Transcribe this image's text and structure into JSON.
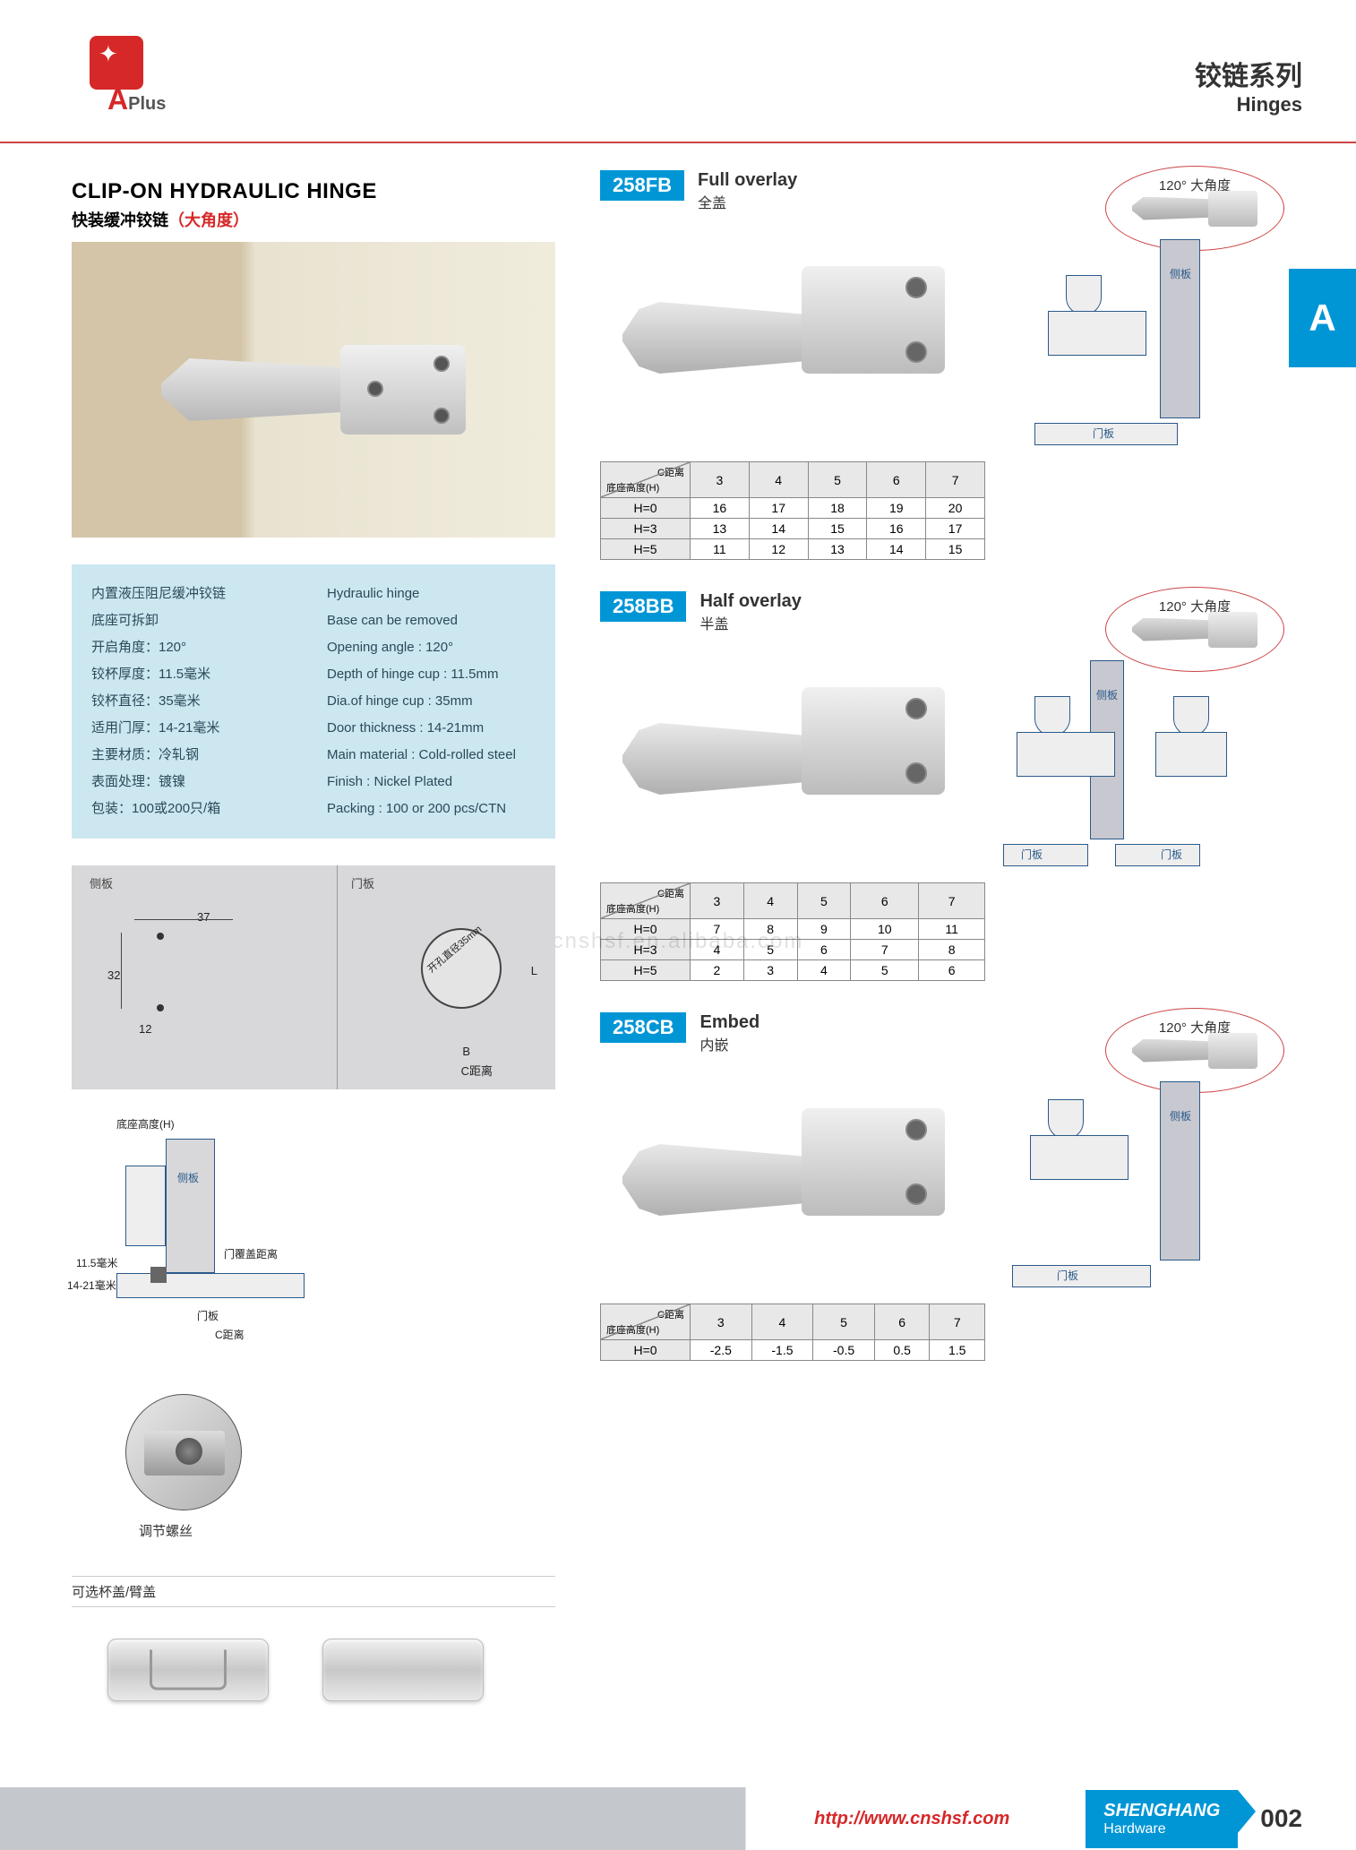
{
  "header": {
    "series_cn": "铰链系列",
    "series_en": "Hinges"
  },
  "logo": {
    "brand": "A",
    "sub": "Plus"
  },
  "product": {
    "title_en": "CLIP-ON HYDRAULIC HINGE",
    "title_cn_prefix": "快装缓冲铰链",
    "title_cn_hl": "（大角度）"
  },
  "specs_cn": [
    "内置液压阻尼缓冲铰链",
    "底座可拆卸",
    "开启角度：120°",
    "铰杯厚度：11.5毫米",
    "铰杯直径：35毫米",
    "适用门厚：14-21毫米",
    "主要材质：冷轧钢",
    "表面处理：镀镍",
    "包装：100或200只/箱"
  ],
  "specs_en": [
    "Hydraulic hinge",
    "Base can be removed",
    "Opening angle : 120°",
    "Depth of hinge cup : 11.5mm",
    "Dia.of hinge cup : 35mm",
    "Door thickness : 14-21mm",
    "Main material : Cold-rolled steel",
    "Finish : Nickel Plated",
    "Packing : 100 or 200 pcs/CTN"
  ],
  "tech": {
    "side_label": "侧板",
    "door_label": "门板",
    "dim_37": "37",
    "dim_32": "32",
    "dim_12": "12",
    "dim_L": "L",
    "dim_B": "B",
    "dim_C": "C距离",
    "hole": "开孔直径35mm",
    "base_h": "底座高度(H)",
    "cup_depth": "11.5毫米",
    "door_thick": "14-21毫米",
    "overlap": "门覆盖距离"
  },
  "detail": {
    "label": "调节螺丝"
  },
  "covers": {
    "label": "可选杯盖/臂盖"
  },
  "variants": [
    {
      "code": "258FB",
      "en": "Full overlay",
      "cn": "全盖",
      "angle": "120° 大角度",
      "table": {
        "cols": [
          "3",
          "4",
          "5",
          "6",
          "7"
        ],
        "col_hdr": "C距离",
        "row_hdr": "底座高度(H)",
        "rows": [
          {
            "h": "H=0",
            "v": [
              "16",
              "17",
              "18",
              "19",
              "20"
            ]
          },
          {
            "h": "H=3",
            "v": [
              "13",
              "14",
              "15",
              "16",
              "17"
            ]
          },
          {
            "h": "H=5",
            "v": [
              "11",
              "12",
              "13",
              "14",
              "15"
            ]
          }
        ]
      },
      "sect": {
        "side": "侧板",
        "door": "门板",
        "type": "full"
      }
    },
    {
      "code": "258BB",
      "en": "Half overlay",
      "cn": "半盖",
      "angle": "120° 大角度",
      "table": {
        "cols": [
          "3",
          "4",
          "5",
          "6",
          "7"
        ],
        "col_hdr": "C距离",
        "row_hdr": "底座高度(H)",
        "rows": [
          {
            "h": "H=0",
            "v": [
              "7",
              "8",
              "9",
              "10",
              "11"
            ]
          },
          {
            "h": "H=3",
            "v": [
              "4",
              "5",
              "6",
              "7",
              "8"
            ]
          },
          {
            "h": "H=5",
            "v": [
              "2",
              "3",
              "4",
              "5",
              "6"
            ]
          }
        ]
      },
      "sect": {
        "side": "侧板",
        "door": "门板",
        "type": "half"
      }
    },
    {
      "code": "258CB",
      "en": "Embed",
      "cn": "内嵌",
      "angle": "120° 大角度",
      "table": {
        "cols": [
          "3",
          "4",
          "5",
          "6",
          "7"
        ],
        "col_hdr": "C距离",
        "row_hdr": "底座高度(H)",
        "rows": [
          {
            "h": "H=0",
            "v": [
              "-2.5",
              "-1.5",
              "-0.5",
              "0.5",
              "1.5"
            ]
          }
        ]
      },
      "sect": {
        "side": "侧板",
        "door": "门板",
        "type": "embed"
      }
    }
  ],
  "side_tab": "A",
  "watermark": "cnshsf.en.alibaba.com",
  "footer": {
    "url": "http://www.cnshsf.com",
    "brand_big": "SHENGHANG",
    "brand_small": "Hardware",
    "page": "002"
  },
  "colors": {
    "accent": "#0096d6",
    "red": "#d62828",
    "spec_bg": "#cce7f0",
    "diag_bg": "#d8d8da",
    "line": "#2a5a8a"
  }
}
